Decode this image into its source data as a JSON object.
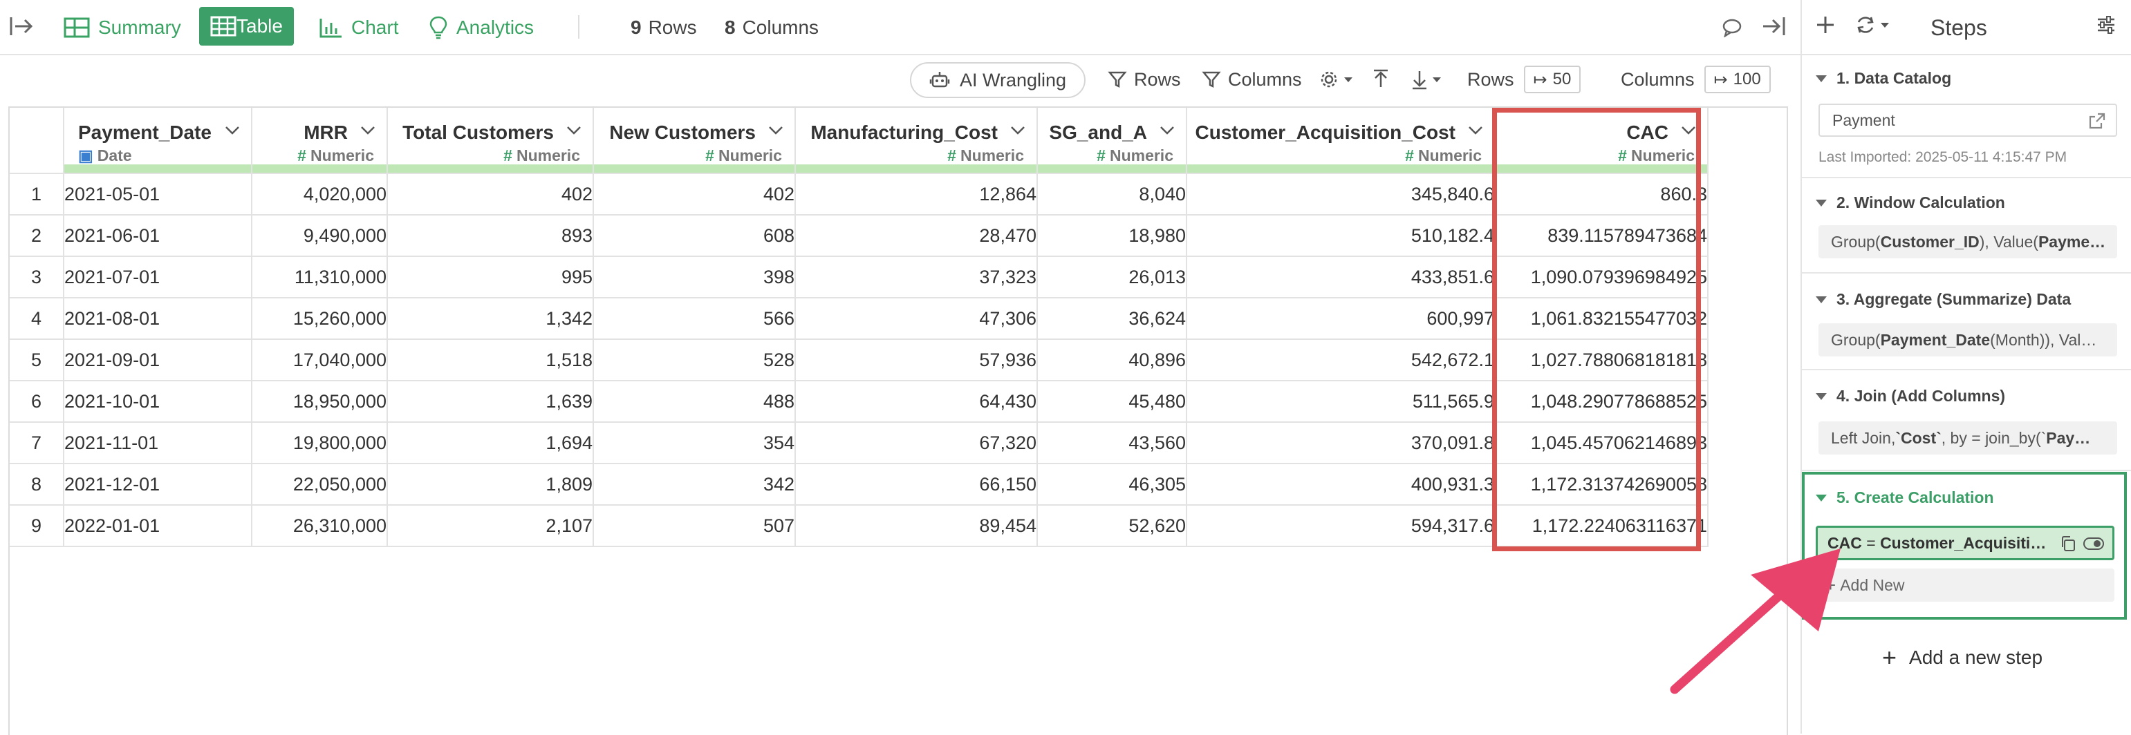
{
  "topbar": {
    "tabs": [
      {
        "label": "Summary",
        "icon": "summary-grid-icon",
        "active": false
      },
      {
        "label": "Table",
        "icon": "table-icon",
        "active": true
      },
      {
        "label": "Chart",
        "icon": "bar-chart-icon",
        "active": false
      },
      {
        "label": "Analytics",
        "icon": "lightbulb-icon",
        "active": false
      }
    ],
    "rows_count": "9",
    "rows_label": "Rows",
    "cols_count": "8",
    "cols_label": "Columns"
  },
  "toolbar": {
    "ai_wrangling": "AI Wrangling",
    "rows_filter": "Rows",
    "columns_filter": "Columns",
    "rows_label": "Rows",
    "rows_limit": "50",
    "columns_label": "Columns",
    "columns_limit": "100"
  },
  "table": {
    "columns": [
      {
        "name": "Payment_Date",
        "type": "Date",
        "align": "left"
      },
      {
        "name": "MRR",
        "type": "Numeric",
        "align": "right"
      },
      {
        "name": "Total Customers",
        "type": "Numeric",
        "align": "right"
      },
      {
        "name": "New Customers",
        "type": "Numeric",
        "align": "right"
      },
      {
        "name": "Manufacturing_Cost",
        "type": "Numeric",
        "align": "right"
      },
      {
        "name": "SG_and_A",
        "type": "Numeric",
        "align": "right"
      },
      {
        "name": "Customer_Acquisition_Cost",
        "type": "Numeric",
        "align": "right"
      },
      {
        "name": "CAC",
        "type": "Numeric",
        "align": "right"
      }
    ],
    "rows": [
      [
        "1",
        "2021-05-01",
        "4,020,000",
        "402",
        "402",
        "12,864",
        "8,040",
        "345,840.6",
        "860.3"
      ],
      [
        "2",
        "2021-06-01",
        "9,490,000",
        "893",
        "608",
        "28,470",
        "18,980",
        "510,182.4",
        "839.115789473684"
      ],
      [
        "3",
        "2021-07-01",
        "11,310,000",
        "995",
        "398",
        "37,323",
        "26,013",
        "433,851.6",
        "1,090.079396984925"
      ],
      [
        "4",
        "2021-08-01",
        "15,260,000",
        "1,342",
        "566",
        "47,306",
        "36,624",
        "600,997",
        "1,061.832155477032"
      ],
      [
        "5",
        "2021-09-01",
        "17,040,000",
        "1,518",
        "528",
        "57,936",
        "40,896",
        "542,672.1",
        "1,027.788068181818"
      ],
      [
        "6",
        "2021-10-01",
        "18,950,000",
        "1,639",
        "488",
        "64,430",
        "45,480",
        "511,565.9",
        "1,048.290778688525"
      ],
      [
        "7",
        "2021-11-01",
        "19,800,000",
        "1,694",
        "354",
        "67,320",
        "43,560",
        "370,091.8",
        "1,045.457062146893"
      ],
      [
        "8",
        "2021-12-01",
        "22,050,000",
        "1,809",
        "342",
        "66,150",
        "46,305",
        "400,931.3",
        "1,172.313742690058"
      ],
      [
        "9",
        "2022-01-01",
        "26,310,000",
        "2,107",
        "507",
        "89,454",
        "52,620",
        "594,317.6",
        "1,172.224063116371"
      ]
    ]
  },
  "sidebar": {
    "title": "Steps",
    "steps": [
      {
        "title": "1. Data Catalog",
        "box": "Payment",
        "note": "Last Imported: 2025-05-11 4:15:47 PM"
      },
      {
        "title": "2. Window Calculation",
        "box_prefix": "Group(",
        "box_bold": "Customer_ID",
        "box_mid": "), Value(",
        "box_bold2": "Payme…"
      },
      {
        "title": "3. Aggregate (Summarize) Data",
        "box_prefix": "Group(",
        "box_bold": "Payment_Date",
        "box_mid": " (Month)), Val…"
      },
      {
        "title": "4. Join (Add Columns)",
        "box_prefix": "Left Join, ",
        "box_bold": "`Cost`",
        "box_mid": ", by = join_by(`",
        "box_bold2": "Pay…"
      },
      {
        "title": "5. Create Calculation",
        "calc_name": "CAC",
        "calc_eq": " = ",
        "calc_expr": "Customer_Acquisiti…",
        "add_new": "Add New"
      }
    ],
    "add_step": "Add a new step"
  },
  "colors": {
    "accent_green": "#3c9f68",
    "highlight_red": "#d9534f",
    "arrow_pink": "#e8436a",
    "type_bar": "#bfe7b6"
  }
}
